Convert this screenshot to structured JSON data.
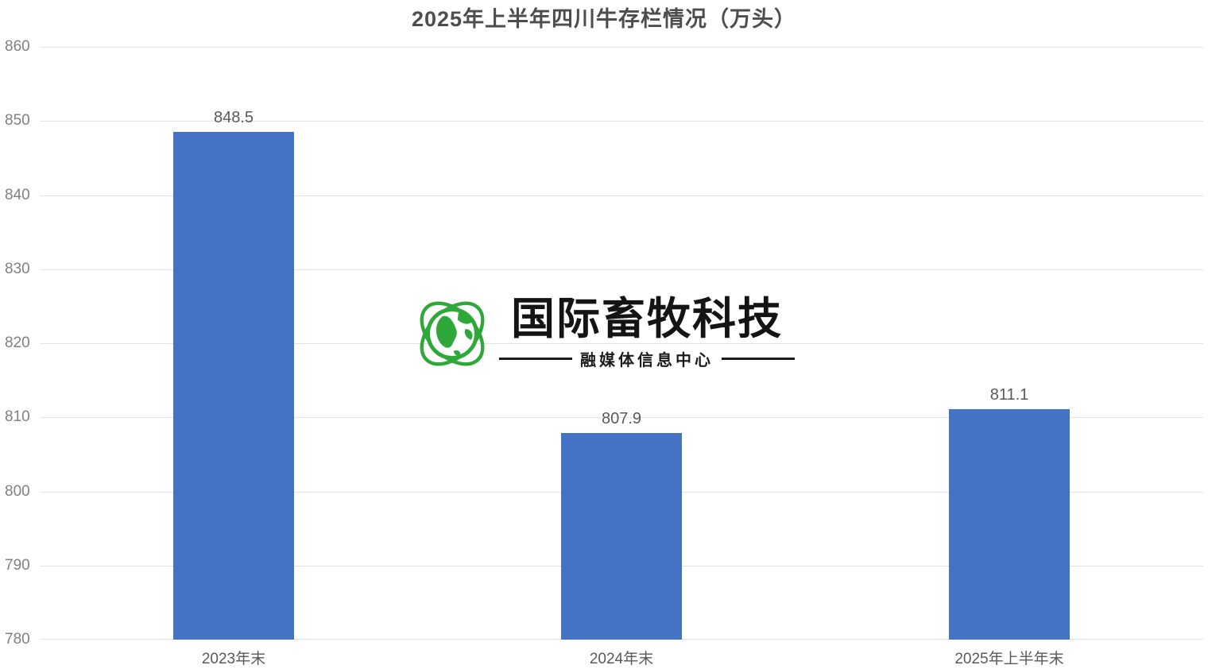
{
  "chart_data": {
    "type": "bar",
    "title": "2025年上半年四川牛存栏情况（万头）",
    "categories": [
      "2023年末",
      "2024年末",
      "2025年上半年末"
    ],
    "values": [
      848.5,
      807.9,
      811.1
    ],
    "data_labels": [
      "848.5",
      "807.9",
      "811.1"
    ],
    "xlabel": "",
    "ylabel": "",
    "ylim": [
      780,
      860
    ],
    "yticks": [
      780,
      790,
      800,
      810,
      820,
      830,
      840,
      850,
      860
    ],
    "grid": true,
    "legend": "none",
    "bar_color": "#4472C4",
    "grid_color": "#e2e2e2",
    "tick_label_color": "#808080",
    "data_label_color": "#595959",
    "title_color": "#4d4d4d"
  },
  "watermark": {
    "brand": "国际畜牧科技",
    "subtitle": "融媒体信息中心",
    "logo_icon": "globe-orbit-icon",
    "logo_color": "#2EA838",
    "text_color": "#141414"
  }
}
